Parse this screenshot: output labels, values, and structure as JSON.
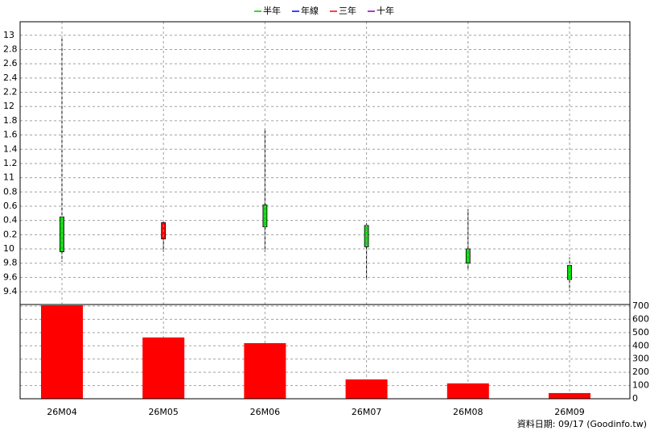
{
  "chart_data": [
    {
      "type": "candlestick",
      "legend": [
        {
          "name": "半年",
          "color": "#00c000"
        },
        {
          "name": "年線",
          "color": "#0000ff"
        },
        {
          "name": "三年",
          "color": "#ff0000"
        },
        {
          "name": "十年",
          "color": "#8000c0"
        }
      ],
      "open": [
        10.45,
        10.14,
        10.62,
        10.33,
        10.0,
        9.77
      ],
      "high": [
        12.99,
        10.39,
        11.69,
        10.36,
        10.56,
        9.88
      ],
      "low": [
        9.82,
        9.96,
        9.96,
        9.56,
        9.71,
        9.41
      ],
      "close": [
        9.96,
        10.37,
        10.31,
        10.03,
        9.8,
        9.57
      ],
      "up_color": "#ff0000",
      "down_color": "#00dd00",
      "ylim": [
        9.22,
        13.19
      ],
      "yticks": [
        13,
        {
          "value": 12.8,
          "label": "2.8"
        },
        {
          "value": 12.6,
          "label": "2.6"
        },
        {
          "value": 12.4,
          "label": "2.4"
        },
        {
          "value": 12.2,
          "label": "2.2"
        },
        12,
        {
          "value": 11.8,
          "label": "1.8"
        },
        {
          "value": 11.6,
          "label": "1.6"
        },
        {
          "value": 11.4,
          "label": "1.4"
        },
        {
          "value": 11.2,
          "label": "1.2"
        },
        11,
        {
          "value": 10.8,
          "label": "0.8"
        },
        {
          "value": 10.6,
          "label": "0.6"
        },
        {
          "value": 10.4,
          "label": "0.4"
        },
        {
          "value": 10.2,
          "label": "0.2"
        },
        10,
        9.8,
        9.6,
        9.4
      ],
      "grid": true
    },
    {
      "type": "bar",
      "categories": [
        "26M04",
        "26M05",
        "26M06",
        "26M07",
        "26M08",
        "26M09"
      ],
      "values": [
        706000,
        463000,
        420000,
        146000,
        116000,
        43000
      ],
      "color": "#ff0000",
      "ylim": [
        0,
        712000
      ],
      "yticks": [
        0,
        {
          "value": 100000,
          "label": "100,000"
        },
        {
          "value": 200000,
          "label": "200,000"
        },
        {
          "value": 300000,
          "label": "300,000"
        },
        {
          "value": 400000,
          "label": "400,000"
        },
        {
          "value": 500000,
          "label": "500,000"
        },
        {
          "value": 600000,
          "label": "600,000"
        },
        {
          "value": 700000,
          "label": "700,000"
        }
      ],
      "grid": true,
      "note": "資料日期: 09/17  (Goodinfo.tw)"
    }
  ]
}
